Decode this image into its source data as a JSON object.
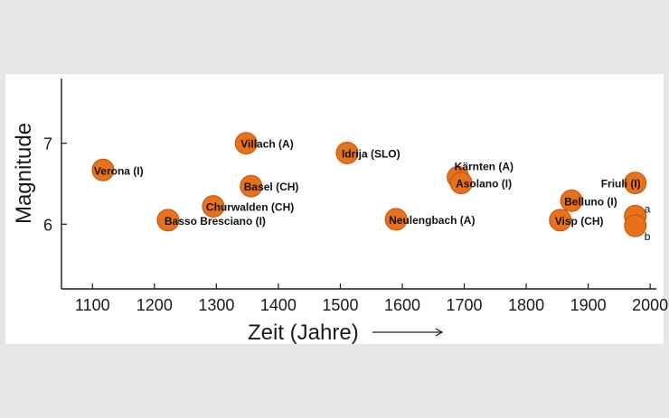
{
  "chart_data": {
    "type": "scatter",
    "xlabel": "Zeit (Jahre)",
    "ylabel": "Magnitude",
    "xlim": [
      1050,
      2010
    ],
    "ylim": [
      5.2,
      7.8
    ],
    "xticks": [
      1100,
      1200,
      1300,
      1400,
      1500,
      1600,
      1700,
      1800,
      1900,
      2000
    ],
    "yticks": [
      6,
      7
    ],
    "grid": false,
    "colors": {
      "marker_fill": "#e8711c",
      "marker_edge": "#c0550a",
      "axis": "#1a1a1a"
    },
    "points": [
      {
        "x": 1117,
        "y": 6.67,
        "label": "Verona (I)"
      },
      {
        "x": 1222,
        "y": 6.05,
        "label": "Basso Bresciano (I)"
      },
      {
        "x": 1295,
        "y": 6.22,
        "label": "Churwalden (CH)"
      },
      {
        "x": 1348,
        "y": 7.0,
        "label": "Villach (A)"
      },
      {
        "x": 1356,
        "y": 6.47,
        "label": "Basel (CH)"
      },
      {
        "x": 1511,
        "y": 6.88,
        "label": "Idrija (SLO)"
      },
      {
        "x": 1590,
        "y": 6.06,
        "label": "Neulengbach (A)"
      },
      {
        "x": 1690,
        "y": 6.58,
        "label": "Kärnten (A)"
      },
      {
        "x": 1695,
        "y": 6.51,
        "label": "Asolano (I)"
      },
      {
        "x": 1855,
        "y": 6.05,
        "label": "Visp (CH)"
      },
      {
        "x": 1873,
        "y": 6.29,
        "label": "Belluno (I)"
      },
      {
        "x": 1976,
        "y": 6.51,
        "label": "Friuli (I)"
      },
      {
        "x": 1976,
        "y": 6.1,
        "label": "",
        "note": "a"
      },
      {
        "x": 1976,
        "y": 5.98,
        "label": "",
        "note": "b"
      }
    ]
  }
}
